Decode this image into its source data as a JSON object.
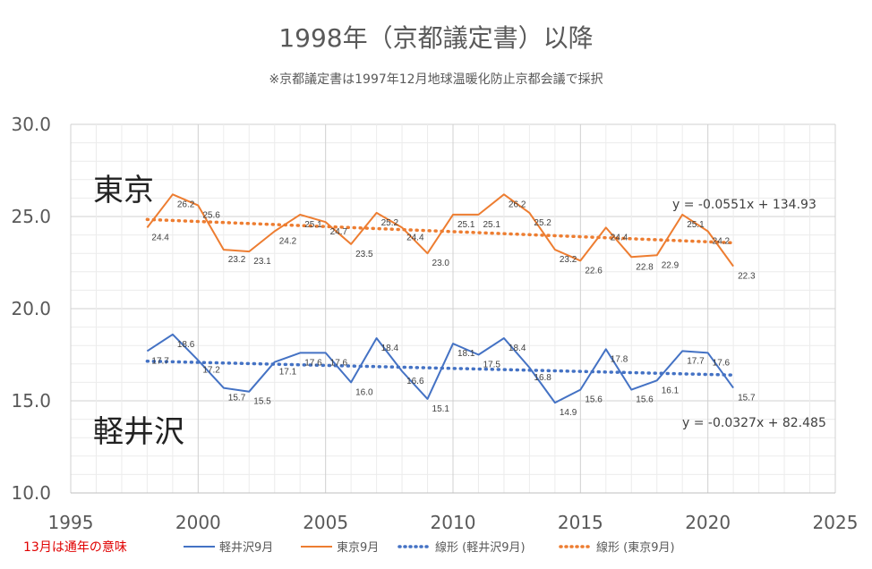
{
  "chart_data": {
    "type": "line",
    "title": "1998年（京都議定書）以降",
    "subtitle": "※京都議定書は1997年12月地球温暖化防止京都会議で採択",
    "xlim": [
      1995,
      2025
    ],
    "ylim": [
      10,
      30
    ],
    "x_ticks": [
      "1995",
      "2000",
      "2005",
      "2010",
      "2015",
      "2020",
      "2025"
    ],
    "y_ticks": [
      "10.0",
      "15.0",
      "20.0",
      "25.0",
      "30.0"
    ],
    "grid": true,
    "legend_position": "bottom",
    "x": [
      1998,
      1999,
      2000,
      2001,
      2002,
      2003,
      2004,
      2005,
      2006,
      2007,
      2008,
      2009,
      2010,
      2011,
      2012,
      2013,
      2014,
      2015,
      2016,
      2017,
      2018,
      2019,
      2020,
      2021
    ],
    "series": [
      {
        "name": "軽井沢9月",
        "color": "#4472c4",
        "values": [
          17.7,
          18.6,
          17.2,
          15.7,
          15.5,
          17.1,
          17.6,
          17.6,
          16.0,
          18.4,
          16.6,
          15.1,
          18.1,
          17.5,
          18.4,
          16.8,
          14.9,
          15.6,
          17.8,
          15.6,
          16.1,
          17.7,
          17.6,
          15.7
        ],
        "labels": [
          "17.7",
          "18.6",
          "17.2",
          "15.7",
          "15.5",
          "17.1",
          "17.6",
          "17.6",
          "16.0",
          "18.4",
          "16.6",
          "15.1",
          "18.1",
          "17.5",
          "18.4",
          "16.8",
          "14.9",
          "15.6",
          "17.8",
          "15.6",
          "16.1",
          "17.7",
          "17.6",
          "15.7"
        ]
      },
      {
        "name": "東京9月",
        "color": "#ed7d31",
        "values": [
          24.4,
          26.2,
          25.6,
          23.2,
          23.1,
          24.2,
          25.1,
          24.7,
          23.5,
          25.2,
          24.4,
          23.0,
          25.1,
          25.1,
          26.2,
          25.2,
          23.2,
          22.6,
          24.4,
          22.8,
          22.9,
          25.1,
          24.2,
          22.3
        ],
        "labels": [
          "24.4",
          "26.2",
          "25.6",
          "23.2",
          "23.1",
          "24.2",
          "25.1",
          "24.7",
          "23.5",
          "25.2",
          "24.4",
          "23.0",
          "25.1",
          "25.1",
          "26.2",
          "25.2",
          "23.2",
          "22.6",
          "24.4",
          "22.8",
          "22.9",
          "25.1",
          "24.2",
          "22.3"
        ]
      }
    ],
    "trendlines": [
      {
        "name": "線形 (軽井沢9月)",
        "color": "#4472c4",
        "slope": -0.0327,
        "intercept": 82.485,
        "equation": "y = -0.0327x + 82.485"
      },
      {
        "name": "線形 (東京9月)",
        "color": "#ed7d31",
        "slope": -0.0551,
        "intercept": 134.93,
        "equation": "y = -0.0551x + 134.93"
      }
    ],
    "annotations": {
      "tokyo": "東京",
      "karuizawa": "軽井沢",
      "note": "13月は通年の意味"
    }
  }
}
